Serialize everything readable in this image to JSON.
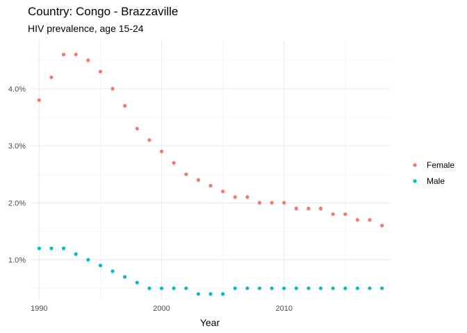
{
  "chart_data": {
    "type": "scatter",
    "title": "Country: Congo - Brazzaville",
    "subtitle": "HIV prevalence, age 15-24",
    "xlabel": "Year",
    "ylabel": "",
    "xlim": [
      1989.3,
      2018.7
    ],
    "ylim": [
      0.3,
      4.85
    ],
    "x_ticks": [
      1990,
      2000,
      2010
    ],
    "x_tick_labels": [
      "1990",
      "2000",
      "2010"
    ],
    "y_ticks": [
      1,
      2,
      3,
      4
    ],
    "y_tick_labels": [
      "1.0%",
      "2.0%",
      "3.0%",
      "4.0%"
    ],
    "grid": true,
    "legend_position": "right",
    "x": [
      1990,
      1991,
      1992,
      1993,
      1994,
      1995,
      1996,
      1997,
      1998,
      1999,
      2000,
      2001,
      2002,
      2003,
      2004,
      2005,
      2006,
      2007,
      2008,
      2009,
      2010,
      2011,
      2012,
      2013,
      2014,
      2015,
      2016,
      2017,
      2018
    ],
    "series": [
      {
        "name": "Female",
        "color": "#F8766D",
        "values": [
          3.8,
          4.2,
          4.6,
          4.6,
          4.5,
          4.3,
          4.0,
          3.7,
          3.3,
          3.1,
          2.9,
          2.7,
          2.5,
          2.4,
          2.3,
          2.2,
          2.1,
          2.1,
          2.0,
          2.0,
          2.0,
          1.9,
          1.9,
          1.9,
          1.8,
          1.8,
          1.7,
          1.7,
          1.6
        ]
      },
      {
        "name": "Male",
        "color": "#00BFC4",
        "values": [
          1.2,
          1.2,
          1.2,
          1.1,
          1.0,
          0.9,
          0.8,
          0.7,
          0.6,
          0.5,
          0.5,
          0.5,
          0.5,
          0.4,
          0.4,
          0.4,
          0.5,
          0.5,
          0.5,
          0.5,
          0.5,
          0.5,
          0.5,
          0.5,
          0.5,
          0.5,
          0.5,
          0.5,
          0.5
        ]
      }
    ]
  }
}
